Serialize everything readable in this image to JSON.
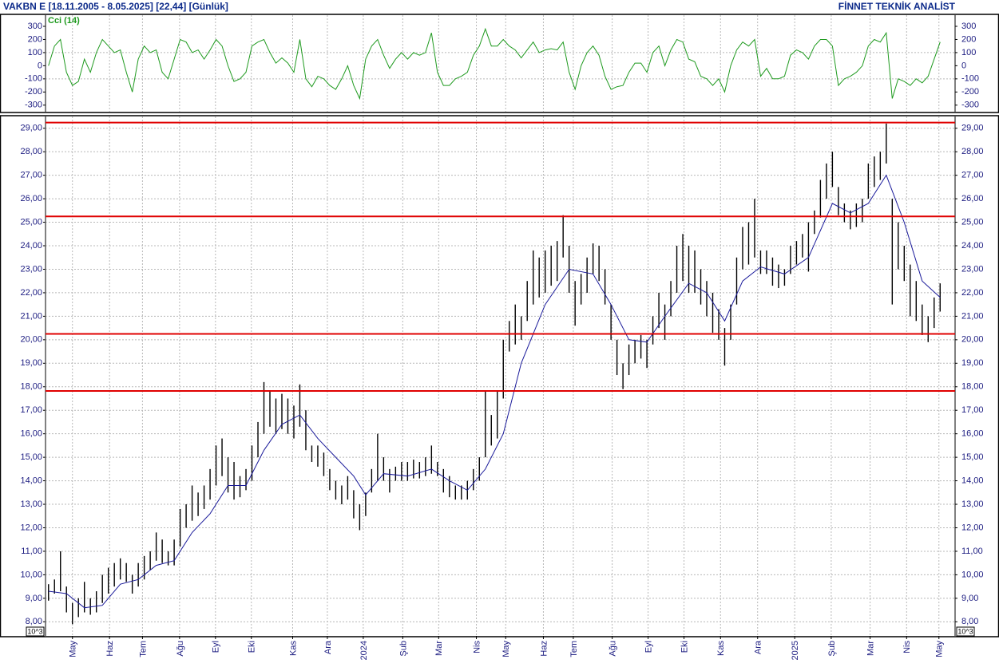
{
  "header": {
    "title": "VAKBN E  [18.11.2005 - 8.05.2025]  [22,44]  [Günlük]",
    "brand": "FİNNET TEKNİK ANALİST"
  },
  "chart_data": [
    {
      "type": "line",
      "title": "Cci (14)",
      "xlim": [
        -0.5,
        151.5
      ],
      "ylim": [
        -350,
        385
      ],
      "yticks": [
        300,
        200,
        100,
        0,
        -100,
        -200,
        -300
      ],
      "grid_values": [
        100,
        -100
      ],
      "series": [
        {
          "color": "#1f9a1f",
          "values": [
            0,
            150,
            200,
            -50,
            -150,
            -120,
            50,
            -50,
            100,
            200,
            150,
            100,
            120,
            -50,
            -200,
            50,
            150,
            100,
            120,
            -50,
            -100,
            50,
            200,
            180,
            100,
            120,
            50,
            120,
            200,
            150,
            0,
            -120,
            -100,
            -50,
            150,
            180,
            200,
            100,
            20,
            60,
            20,
            -50,
            200,
            -100,
            -160,
            -80,
            -100,
            -150,
            -180,
            -100,
            0,
            -150,
            -250,
            50,
            150,
            200,
            80,
            -20,
            50,
            100,
            50,
            100,
            80,
            100,
            250,
            -50,
            -150,
            -150,
            -100,
            -80,
            -50,
            80,
            150,
            280,
            150,
            150,
            200,
            150,
            120,
            60,
            120,
            180,
            100,
            120,
            130,
            120,
            180,
            -50,
            -180,
            0,
            100,
            150,
            80,
            -80,
            -180,
            -160,
            -150,
            -50,
            20,
            20,
            -50,
            100,
            150,
            0,
            120,
            200,
            180,
            50,
            30,
            -80,
            -100,
            -150,
            -100,
            -200,
            0,
            120,
            180,
            150,
            200,
            -80,
            -20,
            -100,
            -100,
            -80,
            80,
            120,
            100,
            50,
            150,
            200,
            200,
            150,
            -150,
            -100,
            -80,
            -50,
            0,
            150,
            200,
            180,
            250,
            -250,
            -100,
            -120,
            -150,
            -100,
            -130,
            -80,
            50,
            180
          ]
        }
      ]
    },
    {
      "type": "hilo",
      "unit_label": "10^3",
      "color": "#000000",
      "xlim": [
        -0.5,
        151.5
      ],
      "ylim": [
        7.4,
        29.5
      ],
      "yticks": [
        {
          "value": 29,
          "label": "29,00"
        },
        {
          "value": 28,
          "label": "28,00"
        },
        {
          "value": 27,
          "label": "27,00"
        },
        {
          "value": 26,
          "label": "26,00"
        },
        {
          "value": 25,
          "label": "25,00"
        },
        {
          "value": 24,
          "label": "24,00"
        },
        {
          "value": 23,
          "label": "23,00"
        },
        {
          "value": 22,
          "label": "22,00"
        },
        {
          "value": 21,
          "label": "21,00"
        },
        {
          "value": 20,
          "label": "20,00"
        },
        {
          "value": 19,
          "label": "19,00"
        },
        {
          "value": 18,
          "label": "18,00"
        },
        {
          "value": 17,
          "label": "17,00"
        },
        {
          "value": 16,
          "label": "16,00"
        },
        {
          "value": 15,
          "label": "15,00"
        },
        {
          "value": 14,
          "label": "14,00"
        },
        {
          "value": 13,
          "label": "13,00"
        },
        {
          "value": 12,
          "label": "12,00"
        },
        {
          "value": 11,
          "label": "11,00"
        },
        {
          "value": 10,
          "label": "10,00"
        },
        {
          "value": 9,
          "label": "9,00"
        },
        {
          "value": 8,
          "label": "8,00"
        }
      ],
      "xticks": [
        {
          "value": 4.0,
          "label": "May"
        },
        {
          "value": 10.2,
          "label": "Haz"
        },
        {
          "value": 15.7,
          "label": "Tem"
        },
        {
          "value": 21.9,
          "label": "Ağu"
        },
        {
          "value": 27.9,
          "label": "Eyl"
        },
        {
          "value": 33.9,
          "label": "Eki"
        },
        {
          "value": 40.8,
          "label": "Kas"
        },
        {
          "value": 46.6,
          "label": "Ara"
        },
        {
          "value": 52.6,
          "label": "2024"
        },
        {
          "value": 59.2,
          "label": "Şub"
        },
        {
          "value": 65.2,
          "label": "Mar"
        },
        {
          "value": 71.5,
          "label": "Nis"
        },
        {
          "value": 76.4,
          "label": "May"
        },
        {
          "value": 82.7,
          "label": "Haz"
        },
        {
          "value": 87.7,
          "label": "Tem"
        },
        {
          "value": 94.2,
          "label": "Ağu"
        },
        {
          "value": 100.2,
          "label": "Eyl"
        },
        {
          "value": 106.2,
          "label": "Eki"
        },
        {
          "value": 112.3,
          "label": "Kas"
        },
        {
          "value": 118.5,
          "label": "Ara"
        },
        {
          "value": 124.7,
          "label": "2025"
        },
        {
          "value": 130.8,
          "label": "Şub"
        },
        {
          "value": 137.3,
          "label": "Mar"
        },
        {
          "value": 143.4,
          "label": "Nis"
        },
        {
          "value": 148.8,
          "label": "May"
        }
      ],
      "highs": [
        9.6,
        9.8,
        11.0,
        9.5,
        8.8,
        9.0,
        9.7,
        9.0,
        9.3,
        10.0,
        10.3,
        10.5,
        10.7,
        10.5,
        10.0,
        10.5,
        10.8,
        11.0,
        11.8,
        11.5,
        11.0,
        11.5,
        12.8,
        13.0,
        13.8,
        13.5,
        13.8,
        14.5,
        15.5,
        15.8,
        15.0,
        14.8,
        14.2,
        14.5,
        15.5,
        16.5,
        18.2,
        17.8,
        17.5,
        17.7,
        17.5,
        17.2,
        18.1,
        17.0,
        15.5,
        15.5,
        15.2,
        14.5,
        14.0,
        13.8,
        14.2,
        13.6,
        13.0,
        13.5,
        14.5,
        16.0,
        15.0,
        14.5,
        14.6,
        14.8,
        14.8,
        14.9,
        14.8,
        15.0,
        15.5,
        14.8,
        14.5,
        14.2,
        13.8,
        13.8,
        14.0,
        14.5,
        15.0,
        17.8,
        16.8,
        17.8,
        20.0,
        20.8,
        21.5,
        21.0,
        22.5,
        23.8,
        23.5,
        23.8,
        24.0,
        24.2,
        25.3,
        24.0,
        22.5,
        22.8,
        23.5,
        24.1,
        24.0,
        23.0,
        21.5,
        20.0,
        19.0,
        19.8,
        20.0,
        20.2,
        20.0,
        21.0,
        22.0,
        21.5,
        22.5,
        24.0,
        24.5,
        24.0,
        23.8,
        23.0,
        22.5,
        22.0,
        21.3,
        20.5,
        21.5,
        23.5,
        24.8,
        25.0,
        26.0,
        23.8,
        23.8,
        23.5,
        23.2,
        23.0,
        24.0,
        24.2,
        24.5,
        25.0,
        25.5,
        26.8,
        27.5,
        28.0,
        26.5,
        25.8,
        25.5,
        25.8,
        26.0,
        27.5,
        27.8,
        28.0,
        29.2,
        26.0,
        25.0,
        24.0,
        23.2,
        22.5,
        21.5,
        21.0,
        21.8,
        22.4
      ],
      "lows": [
        8.9,
        9.2,
        9.3,
        8.4,
        7.9,
        8.2,
        8.4,
        8.3,
        8.4,
        8.8,
        9.2,
        9.5,
        9.8,
        9.7,
        9.2,
        9.5,
        9.8,
        10.2,
        10.6,
        10.5,
        10.4,
        10.4,
        11.2,
        12.0,
        12.3,
        12.5,
        12.8,
        13.2,
        13.8,
        14.2,
        13.5,
        13.2,
        13.3,
        13.6,
        14.0,
        15.0,
        16.0,
        16.3,
        16.0,
        16.2,
        16.0,
        15.8,
        16.3,
        15.3,
        14.8,
        14.6,
        14.2,
        13.6,
        13.2,
        13.0,
        13.2,
        12.4,
        11.9,
        12.5,
        13.5,
        14.0,
        14.0,
        13.5,
        14.0,
        14.0,
        14.0,
        14.1,
        14.1,
        14.2,
        14.3,
        14.2,
        13.5,
        13.3,
        13.2,
        13.2,
        13.2,
        13.6,
        14.0,
        15.0,
        15.5,
        15.8,
        17.5,
        19.5,
        19.8,
        20.0,
        20.8,
        21.5,
        21.8,
        22.0,
        22.3,
        22.5,
        23.5,
        22.0,
        20.6,
        21.5,
        22.0,
        22.8,
        22.5,
        21.5,
        20.0,
        18.5,
        17.9,
        18.5,
        19.0,
        19.2,
        18.8,
        19.8,
        20.5,
        20.0,
        21.0,
        22.0,
        22.5,
        22.0,
        22.0,
        21.5,
        21.0,
        20.3,
        20.0,
        18.9,
        20.0,
        21.5,
        23.0,
        23.2,
        23.5,
        22.8,
        22.8,
        22.3,
        22.2,
        22.3,
        22.8,
        23.2,
        23.5,
        22.9,
        24.5,
        25.2,
        26.0,
        26.5,
        25.3,
        25.0,
        24.7,
        24.8,
        25.0,
        26.0,
        26.5,
        26.8,
        27.5,
        21.5,
        23.0,
        22.5,
        21.0,
        20.8,
        20.2,
        19.9,
        20.5,
        21.2
      ],
      "ma": {
        "color": "#1a1a9a",
        "x": [
          0,
          3,
          6,
          9,
          12,
          15,
          18,
          21,
          24,
          27,
          30,
          33,
          36,
          39,
          42,
          45,
          48,
          51,
          53,
          56,
          60,
          64,
          67,
          70,
          73,
          76,
          79,
          83,
          87,
          91,
          94,
          97,
          100,
          103,
          107,
          110,
          113,
          116,
          119,
          123,
          127,
          131,
          134,
          137,
          140,
          143,
          146,
          149
        ],
        "values": [
          9.3,
          9.2,
          8.6,
          8.7,
          9.6,
          9.8,
          10.4,
          10.6,
          11.8,
          12.6,
          13.8,
          13.8,
          15.3,
          16.4,
          16.8,
          15.8,
          15.0,
          14.2,
          13.4,
          14.3,
          14.2,
          14.5,
          14.0,
          13.6,
          14.5,
          16.0,
          19.0,
          21.5,
          23.0,
          22.8,
          21.5,
          20.0,
          19.9,
          21.0,
          22.4,
          22.0,
          20.8,
          22.5,
          23.1,
          22.8,
          23.5,
          25.8,
          25.4,
          25.8,
          27.0,
          25.0,
          22.5,
          21.8
        ]
      },
      "levels": {
        "color": "#e00000",
        "values": [
          29.24,
          25.25,
          20.25,
          17.82
        ]
      }
    }
  ]
}
